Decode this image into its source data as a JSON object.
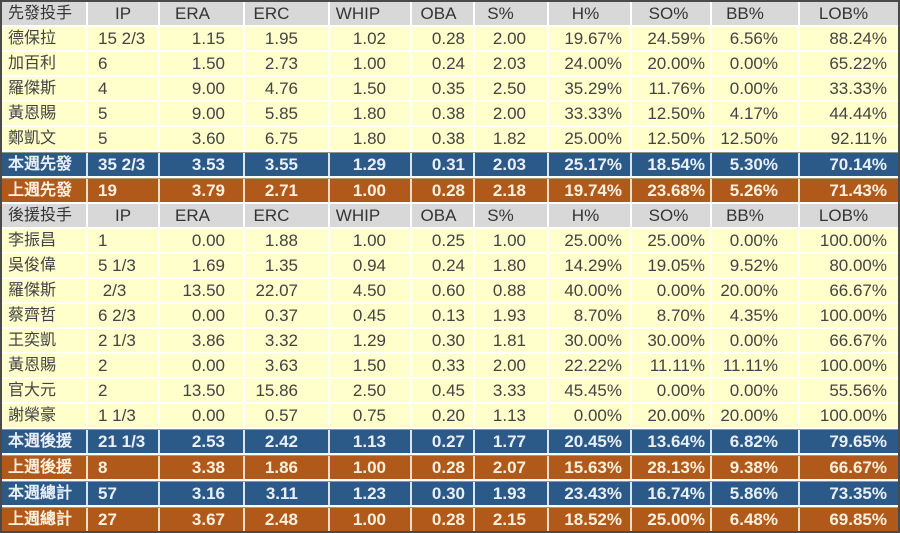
{
  "colors": {
    "summary_week_bg": "#2B5A88",
    "summary_prev_bg": "#B0591B",
    "header_bg": "#D8D8D8",
    "row_bg": "#FFFFCC",
    "grid_line": "#FFFFFF",
    "outer_border": "#4A4A4A"
  },
  "table": {
    "stat_columns": [
      "IP",
      "ERA",
      "ERC",
      "WHIP",
      "OBA",
      "S%",
      "H%",
      "SO%",
      "BB%",
      "LOB%"
    ],
    "rows": [
      {
        "type": "header",
        "label": "先發投手",
        "values": [
          "IP",
          "ERA",
          "ERC",
          "WHIP",
          "OBA",
          "S%",
          "H%",
          "SO%",
          "BB%",
          "LOB%"
        ]
      },
      {
        "type": "player",
        "label": "德保拉",
        "values": [
          "15 2/3",
          "1.15",
          "1.95",
          "1.02",
          "0.28",
          "2.00",
          "19.67%",
          "24.59%",
          "6.56%",
          "88.24%"
        ]
      },
      {
        "type": "player",
        "label": "加百利",
        "values": [
          "6",
          "1.50",
          "2.73",
          "1.00",
          "0.24",
          "2.03",
          "24.00%",
          "20.00%",
          "0.00%",
          "65.22%"
        ]
      },
      {
        "type": "player",
        "label": "羅傑斯",
        "values": [
          "4",
          "9.00",
          "4.76",
          "1.50",
          "0.35",
          "2.50",
          "35.29%",
          "11.76%",
          "0.00%",
          "33.33%"
        ]
      },
      {
        "type": "player",
        "label": "黃恩賜",
        "values": [
          "5",
          "9.00",
          "5.85",
          "1.80",
          "0.38",
          "2.00",
          "33.33%",
          "12.50%",
          "4.17%",
          "44.44%"
        ]
      },
      {
        "type": "player",
        "label": "鄭凱文",
        "values": [
          "5",
          "3.60",
          "6.75",
          "1.80",
          "0.38",
          "1.82",
          "25.00%",
          "12.50%",
          "12.50%",
          "92.11%"
        ]
      },
      {
        "type": "summary-week",
        "label": "本週先發",
        "values": [
          "35 2/3",
          "3.53",
          "3.55",
          "1.29",
          "0.31",
          "2.03",
          "25.17%",
          "18.54%",
          "5.30%",
          "70.14%"
        ]
      },
      {
        "type": "summary-prev",
        "label": "上週先發",
        "values": [
          "19",
          "3.79",
          "2.71",
          "1.00",
          "0.28",
          "2.18",
          "19.74%",
          "23.68%",
          "5.26%",
          "71.43%"
        ]
      },
      {
        "type": "header",
        "label": "後援投手",
        "values": [
          "IP",
          "ERA",
          "ERC",
          "WHIP",
          "OBA",
          "S%",
          "H%",
          "SO%",
          "BB%",
          "LOB%"
        ]
      },
      {
        "type": "player",
        "label": "李振昌",
        "values": [
          "1",
          "0.00",
          "1.88",
          "1.00",
          "0.25",
          "1.00",
          "25.00%",
          "25.00%",
          "0.00%",
          "100.00%"
        ]
      },
      {
        "type": "player",
        "label": "吳俊偉",
        "values": [
          "5 1/3",
          "1.69",
          "1.35",
          "0.94",
          "0.24",
          "1.80",
          "14.29%",
          "19.05%",
          "9.52%",
          "80.00%"
        ]
      },
      {
        "type": "player",
        "label": "羅傑斯",
        "values": [
          " 2/3",
          "13.50",
          "22.07",
          "4.50",
          "0.60",
          "0.88",
          "40.00%",
          "0.00%",
          "20.00%",
          "66.67%"
        ]
      },
      {
        "type": "player",
        "label": "蔡齊哲",
        "values": [
          "6 2/3",
          "0.00",
          "0.37",
          "0.45",
          "0.13",
          "1.93",
          "8.70%",
          "8.70%",
          "4.35%",
          "100.00%"
        ]
      },
      {
        "type": "player",
        "label": "王奕凱",
        "values": [
          "2 1/3",
          "3.86",
          "3.32",
          "1.29",
          "0.30",
          "1.81",
          "30.00%",
          "30.00%",
          "0.00%",
          "66.67%"
        ]
      },
      {
        "type": "player",
        "label": "黃恩賜",
        "values": [
          "2",
          "0.00",
          "3.63",
          "1.50",
          "0.33",
          "2.00",
          "22.22%",
          "11.11%",
          "11.11%",
          "100.00%"
        ]
      },
      {
        "type": "player",
        "label": "官大元",
        "values": [
          "2",
          "13.50",
          "15.86",
          "2.50",
          "0.45",
          "3.33",
          "45.45%",
          "0.00%",
          "0.00%",
          "55.56%"
        ]
      },
      {
        "type": "player",
        "label": "謝榮豪",
        "values": [
          "1 1/3",
          "0.00",
          "0.57",
          "0.75",
          "0.20",
          "1.13",
          "0.00%",
          "20.00%",
          "20.00%",
          "100.00%"
        ]
      },
      {
        "type": "summary-week",
        "label": "本週後援",
        "values": [
          "21 1/3",
          "2.53",
          "2.42",
          "1.13",
          "0.27",
          "1.77",
          "20.45%",
          "13.64%",
          "6.82%",
          "79.65%"
        ]
      },
      {
        "type": "summary-prev",
        "label": "上週後援",
        "values": [
          "8",
          "3.38",
          "1.86",
          "1.00",
          "0.28",
          "2.07",
          "15.63%",
          "28.13%",
          "9.38%",
          "66.67%"
        ]
      },
      {
        "type": "summary-week",
        "label": "本週總計",
        "values": [
          "57",
          "3.16",
          "3.11",
          "1.23",
          "0.30",
          "1.93",
          "23.43%",
          "16.74%",
          "5.86%",
          "73.35%"
        ]
      },
      {
        "type": "summary-prev",
        "label": "上週總計",
        "values": [
          "27",
          "3.67",
          "2.48",
          "1.00",
          "0.28",
          "2.15",
          "18.52%",
          "25.00%",
          "6.48%",
          "69.85%"
        ]
      }
    ]
  }
}
